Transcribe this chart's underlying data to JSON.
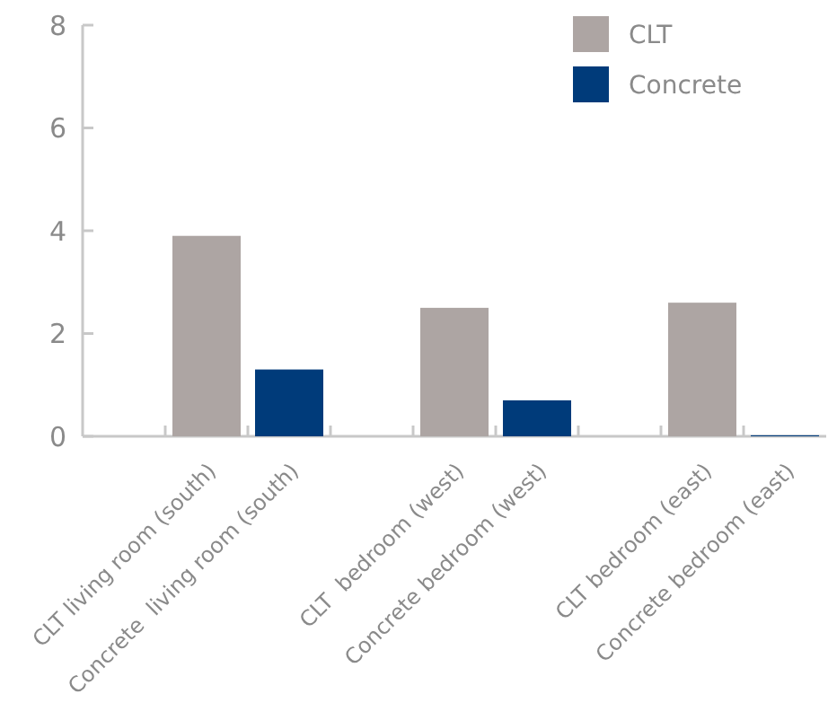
{
  "chart_data": {
    "type": "bar",
    "categories": [
      "CLT living room (south)",
      "Concrete  living room (south)",
      "CLT  bedroom (west)",
      "Concrete bedroom (west)",
      "CLT bedroom (east)",
      "Concrete bedroom (east)"
    ],
    "series": [
      {
        "name": "CLT",
        "color": "#ada5a3",
        "values": [
          3.9,
          null,
          2.5,
          null,
          2.6,
          null
        ]
      },
      {
        "name": "Concrete",
        "color": "#003b7a",
        "values": [
          null,
          1.3,
          null,
          0.7,
          null,
          0.02
        ]
      }
    ],
    "ylim": [
      0,
      8
    ],
    "yticks": [
      0,
      2,
      4,
      6,
      8
    ],
    "grid": false,
    "legend": "top right"
  }
}
